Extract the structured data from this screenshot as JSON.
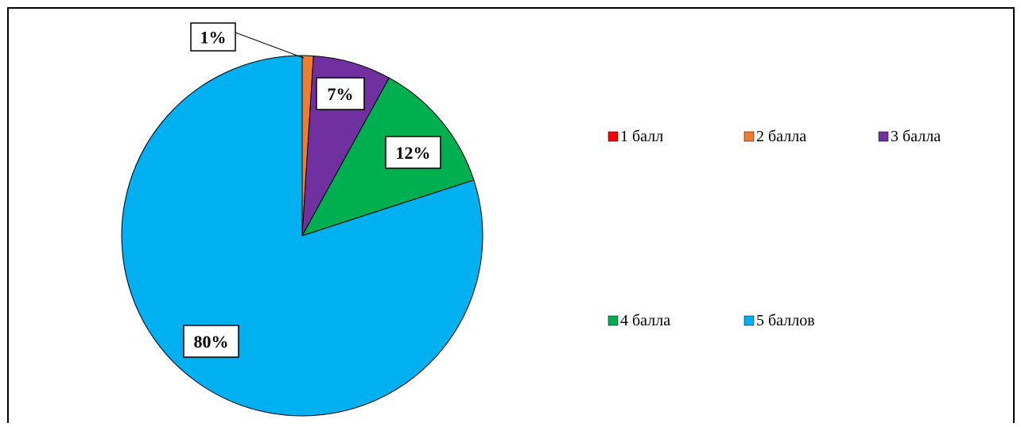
{
  "chart_data": {
    "type": "pie",
    "categories": [
      "1 балл",
      "2 балла",
      "3 балла",
      "4 балла",
      "5 баллов"
    ],
    "values": [
      0,
      1,
      7,
      12,
      80
    ],
    "data_labels": [
      "",
      "1%",
      "7%",
      "12%",
      "80%"
    ],
    "colors": [
      "#ff0000",
      "#ed7d31",
      "#7030a0",
      "#00b050",
      "#00b0f0"
    ],
    "start_angle_deg": 0,
    "direction": "clockwise",
    "legend": "right",
    "title": ""
  }
}
